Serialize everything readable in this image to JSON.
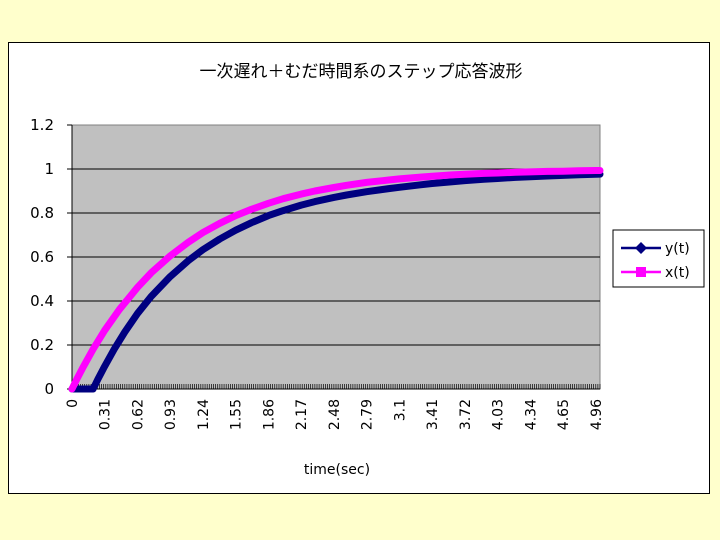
{
  "chart_data": {
    "type": "line",
    "title": "一次遅れ＋むだ時間系のステップ応答波形",
    "xlabel": "time(sec)",
    "ylabel": "",
    "ylim": [
      0,
      1.2
    ],
    "xlim": [
      0,
      5.0
    ],
    "y_ticks": [
      "0",
      "0.2",
      "0.4",
      "0.6",
      "0.8",
      "1",
      "1.2"
    ],
    "y_tick_values": [
      0,
      0.2,
      0.4,
      0.6,
      0.8,
      1.0,
      1.2
    ],
    "x_tick_labels": [
      "0",
      "0.31",
      "0.62",
      "0.93",
      "1.24",
      "1.55",
      "1.86",
      "2.17",
      "2.48",
      "2.79",
      "3.1",
      "3.41",
      "3.72",
      "4.03",
      "4.34",
      "4.65",
      "4.96"
    ],
    "x_tick_values": [
      0,
      0.31,
      0.62,
      0.93,
      1.24,
      1.55,
      1.86,
      2.17,
      2.48,
      2.79,
      3.1,
      3.41,
      3.72,
      4.03,
      4.34,
      4.65,
      4.96
    ],
    "grid": true,
    "legend_position": "right",
    "series": [
      {
        "name": "y(t)",
        "color": "#000080",
        "marker": "diamond",
        "x": [
          0,
          0.2,
          0.25,
          0.3,
          0.4,
          0.5,
          0.62,
          0.75,
          0.93,
          1.1,
          1.24,
          1.4,
          1.55,
          1.7,
          1.86,
          2.0,
          2.17,
          2.3,
          2.48,
          2.6,
          2.79,
          3.0,
          3.1,
          3.3,
          3.41,
          3.6,
          3.72,
          3.9,
          4.03,
          4.2,
          4.34,
          4.5,
          4.65,
          4.8,
          4.96,
          5.0
        ],
        "y": [
          0,
          0,
          0.049,
          0.095,
          0.181,
          0.259,
          0.343,
          0.421,
          0.511,
          0.583,
          0.633,
          0.682,
          0.722,
          0.756,
          0.788,
          0.811,
          0.836,
          0.852,
          0.871,
          0.882,
          0.897,
          0.911,
          0.917,
          0.928,
          0.934,
          0.942,
          0.947,
          0.953,
          0.957,
          0.962,
          0.965,
          0.968,
          0.971,
          0.974,
          0.976,
          0.977
        ]
      },
      {
        "name": "x(t)",
        "color": "#ff00ff",
        "marker": "square",
        "x": [
          0,
          0.05,
          0.1,
          0.2,
          0.31,
          0.45,
          0.62,
          0.75,
          0.93,
          1.1,
          1.24,
          1.4,
          1.55,
          1.7,
          1.86,
          2.0,
          2.17,
          2.3,
          2.48,
          2.6,
          2.79,
          3.0,
          3.1,
          3.3,
          3.41,
          3.6,
          3.72,
          3.9,
          4.03,
          4.2,
          4.34,
          4.5,
          4.65,
          4.8,
          4.96,
          5.0
        ],
        "y": [
          0,
          0.049,
          0.095,
          0.181,
          0.267,
          0.362,
          0.462,
          0.528,
          0.605,
          0.667,
          0.711,
          0.753,
          0.788,
          0.817,
          0.844,
          0.865,
          0.886,
          0.9,
          0.916,
          0.926,
          0.939,
          0.95,
          0.955,
          0.963,
          0.967,
          0.973,
          0.976,
          0.98,
          0.982,
          0.985,
          0.987,
          0.989,
          0.99,
          0.992,
          0.993,
          0.993
        ]
      }
    ]
  }
}
